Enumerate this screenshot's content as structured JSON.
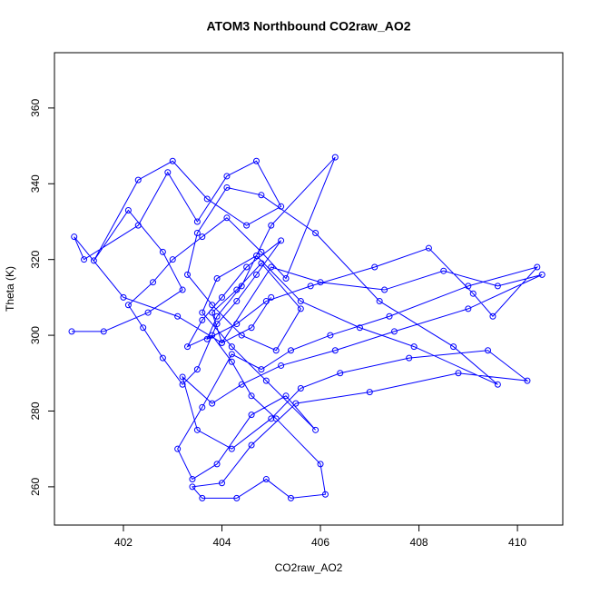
{
  "chart_data": {
    "type": "scatter",
    "connect": true,
    "title": "ATOM3 Northbound CO2raw_AO2",
    "x_label": "CO2raw_AO2",
    "y_label": "Theta (K)",
    "color": "#0000ff",
    "xlim": [
      400.6,
      410.92
    ],
    "ylim": [
      249.9,
      374.6
    ],
    "xticks": [
      402,
      404,
      406,
      408,
      410
    ],
    "yticks": [
      260,
      280,
      300,
      320,
      340,
      360
    ],
    "x": [
      400.95,
      401.6,
      402.5,
      403.2,
      402.8,
      402.1,
      401.4,
      402.3,
      403.0,
      403.7,
      404.5,
      405.2,
      404.7,
      404.1,
      403.5,
      402.9,
      402.3,
      401.2,
      401.0,
      402.0,
      403.1,
      404.0,
      405.0,
      406.0,
      407.3,
      408.5,
      409.6,
      410.5,
      409.0,
      407.5,
      406.3,
      405.2,
      404.4,
      403.8,
      403.2,
      403.5,
      404.2,
      405.0,
      405.6,
      406.4,
      407.8,
      409.4,
      410.2,
      408.8,
      407.0,
      405.5,
      404.6,
      404.0,
      403.4,
      403.6,
      404.3,
      404.9,
      405.4,
      406.1,
      406.0,
      405.1,
      404.6,
      404.2,
      403.8,
      403.3,
      403.6,
      404.0,
      404.5,
      405.2,
      404.7,
      404.3,
      403.9,
      403.5,
      403.2,
      402.8,
      402.4,
      402.1,
      402.6,
      403.0,
      403.6,
      404.1,
      404.8,
      405.3,
      406.3,
      405.0,
      404.4,
      403.9,
      403.7,
      404.3,
      404.9,
      405.8,
      407.1,
      408.2,
      409.1,
      409.5,
      410.4,
      409.0,
      407.4,
      406.2,
      405.4,
      404.8,
      404.2,
      403.6,
      403.1,
      403.4,
      403.9,
      404.6,
      405.3,
      405.9,
      404.9,
      404.2,
      403.6,
      403.9,
      404.7,
      405.6,
      406.8,
      407.9,
      409.6,
      408.7,
      407.2,
      405.9,
      404.8,
      404.1,
      403.5,
      403.3,
      403.8,
      404.4,
      405.1,
      405.6,
      404.8,
      404.3,
      403.8,
      404.0,
      404.6,
      405.0
    ],
    "values": [
      301,
      301,
      306,
      312,
      322,
      333,
      319.7,
      341,
      346,
      336,
      329,
      334,
      346,
      342,
      330,
      343,
      329,
      320,
      326,
      310,
      305,
      298,
      318,
      314,
      312,
      317,
      313,
      316,
      307,
      301,
      296,
      292,
      287,
      282,
      289,
      275,
      270,
      278,
      286,
      290,
      294,
      296,
      288,
      290,
      285,
      282,
      271,
      261,
      260,
      257,
      257,
      262,
      257,
      258,
      266,
      278,
      284,
      293,
      300,
      297,
      304,
      310,
      318,
      325,
      316,
      309,
      303,
      291,
      287,
      294,
      302,
      308,
      314,
      320,
      326,
      331,
      322,
      315,
      347,
      329,
      313,
      305,
      299,
      303,
      309,
      313,
      318,
      323,
      311,
      305,
      318,
      313,
      305,
      300,
      296,
      291,
      295,
      281,
      270,
      262,
      266,
      279,
      284,
      275,
      288,
      297,
      306,
      315,
      321,
      309,
      302,
      297,
      287,
      297,
      309,
      327,
      337,
      339,
      327,
      316,
      308,
      300,
      296,
      307,
      319,
      312,
      306,
      298,
      302,
      310
    ]
  }
}
